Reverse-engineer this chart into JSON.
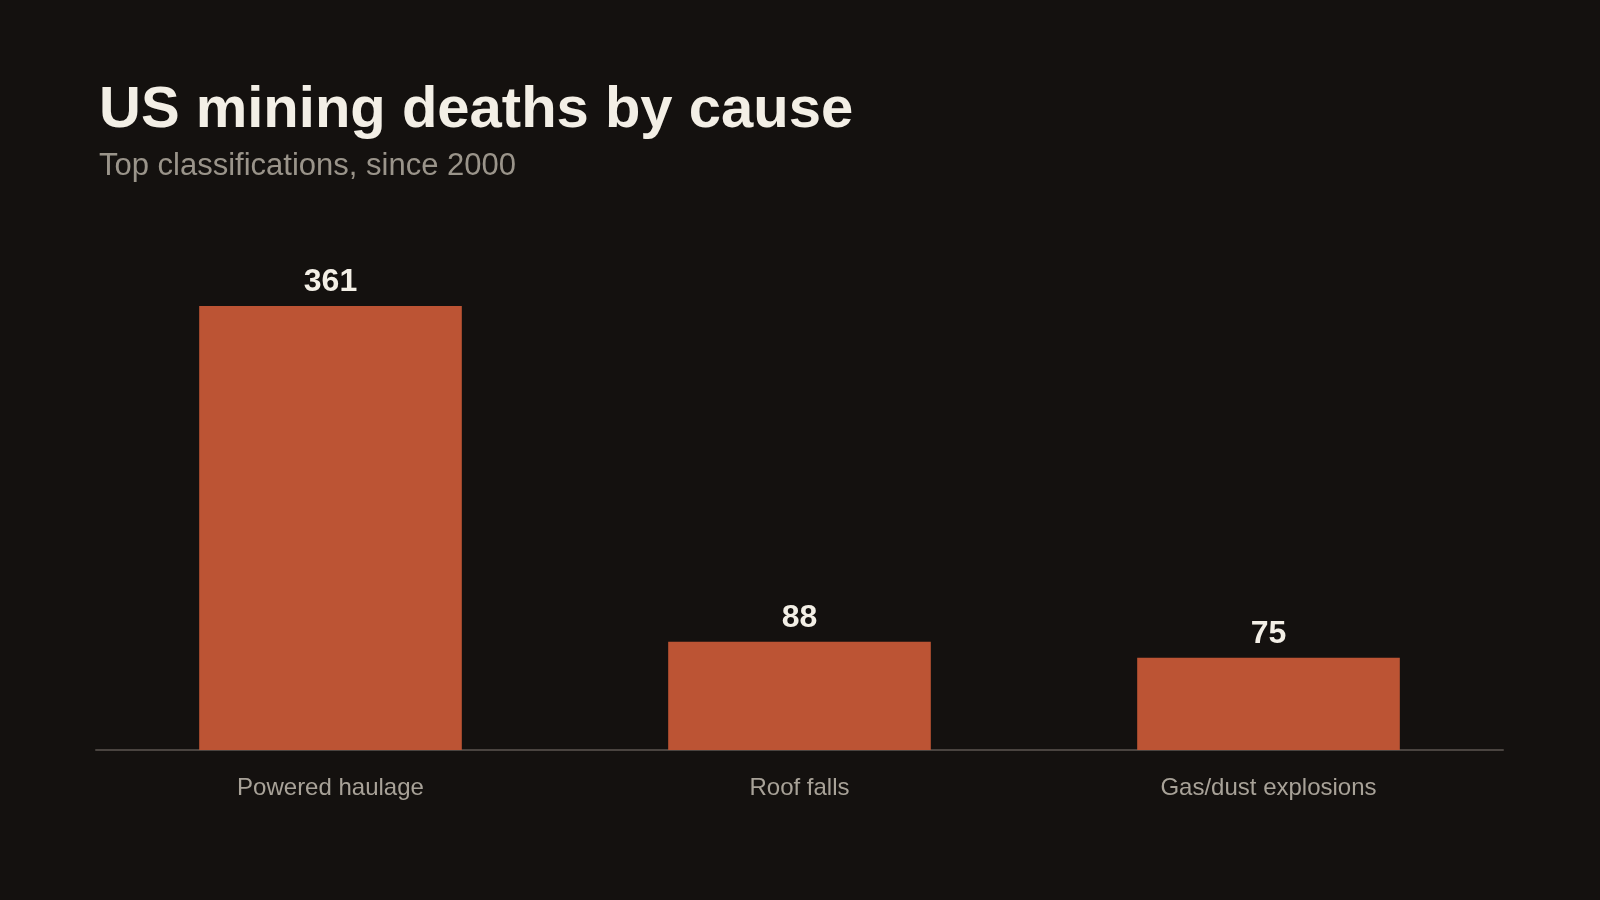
{
  "chart_data": {
    "type": "bar",
    "title": "US mining deaths by cause",
    "subtitle": "Top classifications, since 2000",
    "categories": [
      "Powered haulage",
      "Roof falls",
      "Gas/dust explosions"
    ],
    "values": [
      361,
      88,
      75
    ],
    "color": "#bc5434",
    "data_labels": true
  }
}
